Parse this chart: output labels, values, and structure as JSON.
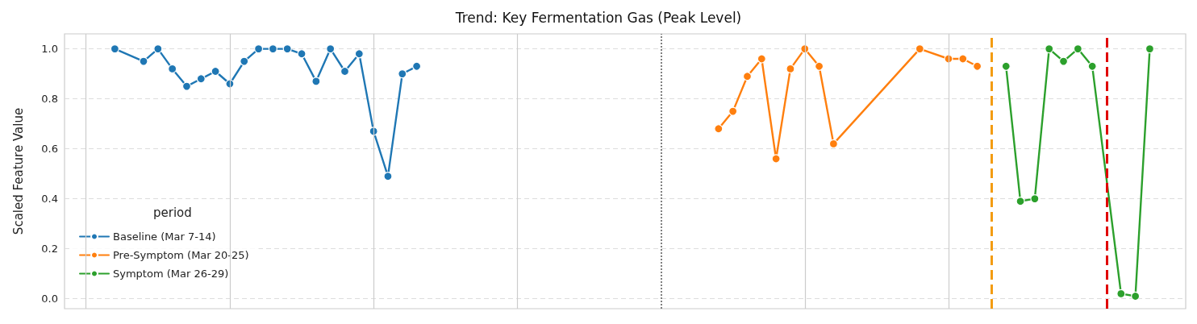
{
  "chart_data": {
    "type": "line",
    "title": "Trend: Key Fermentation Gas (Peak Level)",
    "ylabel": "Scaled Feature Value",
    "legend_title": "period",
    "legend": "bottom left",
    "grid": true,
    "marker": "circle",
    "line_style": "solid",
    "tick_labels": "y",
    "categories": [
      null,
      null,
      null,
      null,
      null,
      null,
      null,
      null,
      null,
      null,
      null,
      null,
      null,
      null,
      null,
      null,
      null,
      null,
      null,
      null,
      null,
      null,
      null,
      null,
      null,
      null,
      null,
      null,
      null,
      null,
      null,
      null,
      null,
      null,
      null,
      null,
      null,
      null,
      null,
      null,
      null,
      null,
      null,
      null,
      null,
      null,
      null,
      null,
      null,
      null,
      null,
      null,
      null,
      null,
      null,
      null,
      null,
      null,
      null,
      null,
      null,
      null,
      null,
      null,
      null,
      null,
      null,
      null,
      null,
      null,
      null,
      null,
      null,
      null,
      null,
      null,
      null,
      null
    ],
    "ylim": [
      -0.04,
      1.06
    ],
    "yticks": [
      {
        "value": 0,
        "label": "0.0"
      },
      {
        "value": 0.2,
        "label": "0.2"
      },
      {
        "value": 0.4,
        "label": "0.4"
      },
      {
        "value": 0.6,
        "label": "0.6"
      },
      {
        "value": 0.8,
        "label": "0.8"
      },
      {
        "value": 1,
        "label": "1.0"
      }
    ],
    "series": [
      {
        "name": "Baseline (Mar 7-14)",
        "color": "#1f77b4",
        "values": [
          null,
          null,
          null,
          1.0,
          null,
          0.95,
          1.0,
          0.92,
          0.85,
          0.88,
          0.91,
          0.86,
          0.95,
          1.0,
          1.0,
          1.0,
          0.98,
          0.87,
          1.0,
          0.91,
          0.98,
          0.67,
          0.49,
          0.9,
          0.93,
          null,
          null,
          null,
          null,
          null,
          null,
          null,
          null,
          null,
          null,
          null,
          null,
          null,
          null,
          null,
          null,
          null,
          null,
          null,
          null,
          null,
          null,
          null,
          null,
          null,
          null,
          null,
          null,
          null,
          null,
          null,
          null,
          null,
          null,
          null,
          null,
          null,
          null,
          null,
          null,
          null,
          null,
          null,
          null,
          null,
          null,
          null,
          null,
          null,
          null,
          null,
          null,
          null
        ]
      },
      {
        "name": "Pre-Symptom (Mar 20-25)",
        "color": "#ff7f0e",
        "values": [
          null,
          null,
          null,
          null,
          null,
          null,
          null,
          null,
          null,
          null,
          null,
          null,
          null,
          null,
          null,
          null,
          null,
          null,
          null,
          null,
          null,
          null,
          null,
          null,
          null,
          null,
          null,
          null,
          null,
          null,
          null,
          null,
          null,
          null,
          null,
          null,
          null,
          null,
          null,
          null,
          null,
          null,
          null,
          null,
          null,
          0.68,
          0.75,
          0.89,
          0.96,
          0.56,
          0.92,
          1.0,
          0.93,
          0.62,
          null,
          null,
          null,
          null,
          null,
          1.0,
          null,
          0.96,
          0.96,
          0.93,
          null,
          null,
          null,
          null,
          null,
          null,
          null,
          null,
          null,
          null,
          null,
          null,
          null,
          null
        ]
      },
      {
        "name": "Symptom (Mar 26-29)",
        "color": "#2ca02c",
        "values": [
          null,
          null,
          null,
          null,
          null,
          null,
          null,
          null,
          null,
          null,
          null,
          null,
          null,
          null,
          null,
          null,
          null,
          null,
          null,
          null,
          null,
          null,
          null,
          null,
          null,
          null,
          null,
          null,
          null,
          null,
          null,
          null,
          null,
          null,
          null,
          null,
          null,
          null,
          null,
          null,
          null,
          null,
          null,
          null,
          null,
          null,
          null,
          null,
          null,
          null,
          null,
          null,
          null,
          null,
          null,
          null,
          null,
          null,
          null,
          null,
          null,
          null,
          null,
          null,
          null,
          0.93,
          0.39,
          0.4,
          1.0,
          0.95,
          1.0,
          0.93,
          null,
          0.02,
          0.01,
          1.0,
          null,
          null
        ]
      }
    ]
  }
}
